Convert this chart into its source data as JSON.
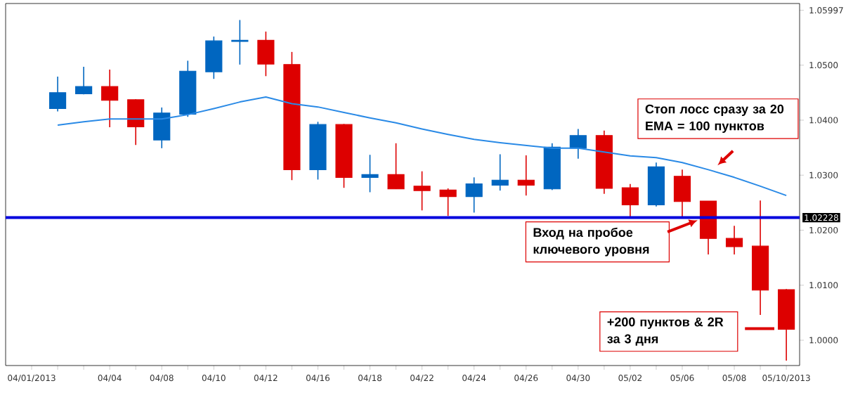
{
  "chart_data": {
    "type": "candlestick",
    "categories": [
      "04/01/2013",
      null,
      null,
      "04/04",
      null,
      "04/08",
      null,
      "04/10",
      null,
      "04/12",
      null,
      "04/16",
      null,
      "04/18",
      null,
      "04/22",
      null,
      "04/24",
      null,
      "04/26",
      null,
      "04/30",
      null,
      "05/02",
      null,
      "05/06",
      null,
      "05/08",
      null,
      "05/10/2013"
    ],
    "ohlc": [
      null,
      [
        1.0421,
        1.0479,
        1.0416,
        1.045
      ],
      [
        1.0448,
        1.0497,
        1.0447,
        1.0461
      ],
      [
        1.0461,
        1.0492,
        1.0387,
        1.0436
      ],
      [
        1.0437,
        1.0438,
        1.0355,
        1.0388
      ],
      [
        1.0364,
        1.0423,
        1.0349,
        1.0413
      ],
      [
        1.0411,
        1.0508,
        1.0406,
        1.0489
      ],
      [
        1.0488,
        1.0552,
        1.0475,
        1.0544
      ],
      [
        1.0543,
        1.0582,
        1.0501,
        1.0545
      ],
      [
        1.0545,
        1.0561,
        1.048,
        1.0502
      ],
      [
        1.0501,
        1.0524,
        1.0291,
        1.031
      ],
      [
        1.031,
        1.0397,
        1.0292,
        1.0392
      ],
      [
        1.0392,
        1.0393,
        1.0277,
        1.0296
      ],
      [
        1.0296,
        1.0337,
        1.0269,
        1.0301
      ],
      [
        1.0301,
        1.0358,
        1.0275,
        1.0275
      ],
      [
        1.028,
        1.0307,
        1.0236,
        1.0272
      ],
      [
        1.0273,
        1.0276,
        1.0226,
        1.0261
      ],
      [
        1.0261,
        1.0296,
        1.0232,
        1.0284
      ],
      [
        1.0282,
        1.0338,
        1.0272,
        1.0291
      ],
      [
        1.0291,
        1.0336,
        1.0263,
        1.0282
      ],
      [
        1.0275,
        1.0358,
        1.0273,
        1.0351
      ],
      [
        1.0349,
        1.0384,
        1.033,
        1.0372
      ],
      [
        1.0372,
        1.0381,
        1.0266,
        1.0276
      ],
      [
        1.0277,
        1.0284,
        1.0225,
        1.0246
      ],
      [
        1.0246,
        1.0323,
        1.0243,
        1.0315
      ],
      [
        1.0298,
        1.031,
        1.0224,
        1.0252
      ],
      [
        1.0253,
        1.0253,
        1.0156,
        1.0185
      ],
      [
        1.0185,
        1.0208,
        1.0156,
        1.017
      ],
      [
        1.0171,
        1.0254,
        1.0046,
        1.0091
      ],
      [
        1.0092,
        1.0093,
        0.9963,
        1.002
      ]
    ],
    "colors": [
      null,
      "#0066c0",
      "#0066c0",
      "#dd0000",
      "#dd0000",
      "#0066c0",
      "#0066c0",
      "#0066c0",
      "#0066c0",
      "#dd0000",
      "#dd0000",
      "#0066c0",
      "#dd0000",
      "#0066c0",
      "#dd0000",
      "#dd0000",
      "#dd0000",
      "#0066c0",
      "#0066c0",
      "#dd0000",
      "#0066c0",
      "#0066c0",
      "#dd0000",
      "#dd0000",
      "#0066c0",
      "#dd0000",
      "#dd0000",
      "#dd0000",
      "#dd0000",
      "#dd0000"
    ],
    "series": [
      {
        "type": "line",
        "color": "#2a8ae6",
        "values": [
          null,
          1.0391,
          1.0397,
          1.0402,
          1.0402,
          1.0402,
          1.041,
          1.0421,
          1.0433,
          1.0442,
          1.043,
          1.0424,
          1.0414,
          1.0404,
          1.0395,
          1.0384,
          1.0374,
          1.0365,
          1.0359,
          1.0354,
          1.0349,
          1.0349,
          1.0342,
          1.0335,
          1.0332,
          1.0323,
          1.031,
          1.0296,
          1.028,
          1.0263
        ]
      }
    ],
    "ylim": [
      0.9954,
      1.0612
    ],
    "yticks": [
      {
        "value": 1.0,
        "label": "1.0000"
      },
      {
        "value": 1.01,
        "label": "1.0100"
      },
      {
        "value": 1.02,
        "label": "1.0200"
      },
      {
        "value": 1.03,
        "label": "1.0300"
      },
      {
        "value": 1.04,
        "label": "1.0400"
      },
      {
        "value": 1.05,
        "label": "1.0500"
      },
      {
        "value": 1.05997,
        "label": "1.05997"
      }
    ],
    "ref_lines": [
      {
        "axis": "y",
        "value": 1.02228,
        "label": "1.02228",
        "color": "#0000dd"
      }
    ],
    "annotations": [
      "Стоп лосс сразу за 20 EMA = 100 пунктов",
      "Вход на пробое ключевого уровня",
      "+200 пунктов & 2R за 3 дня"
    ],
    "grid": false
  }
}
